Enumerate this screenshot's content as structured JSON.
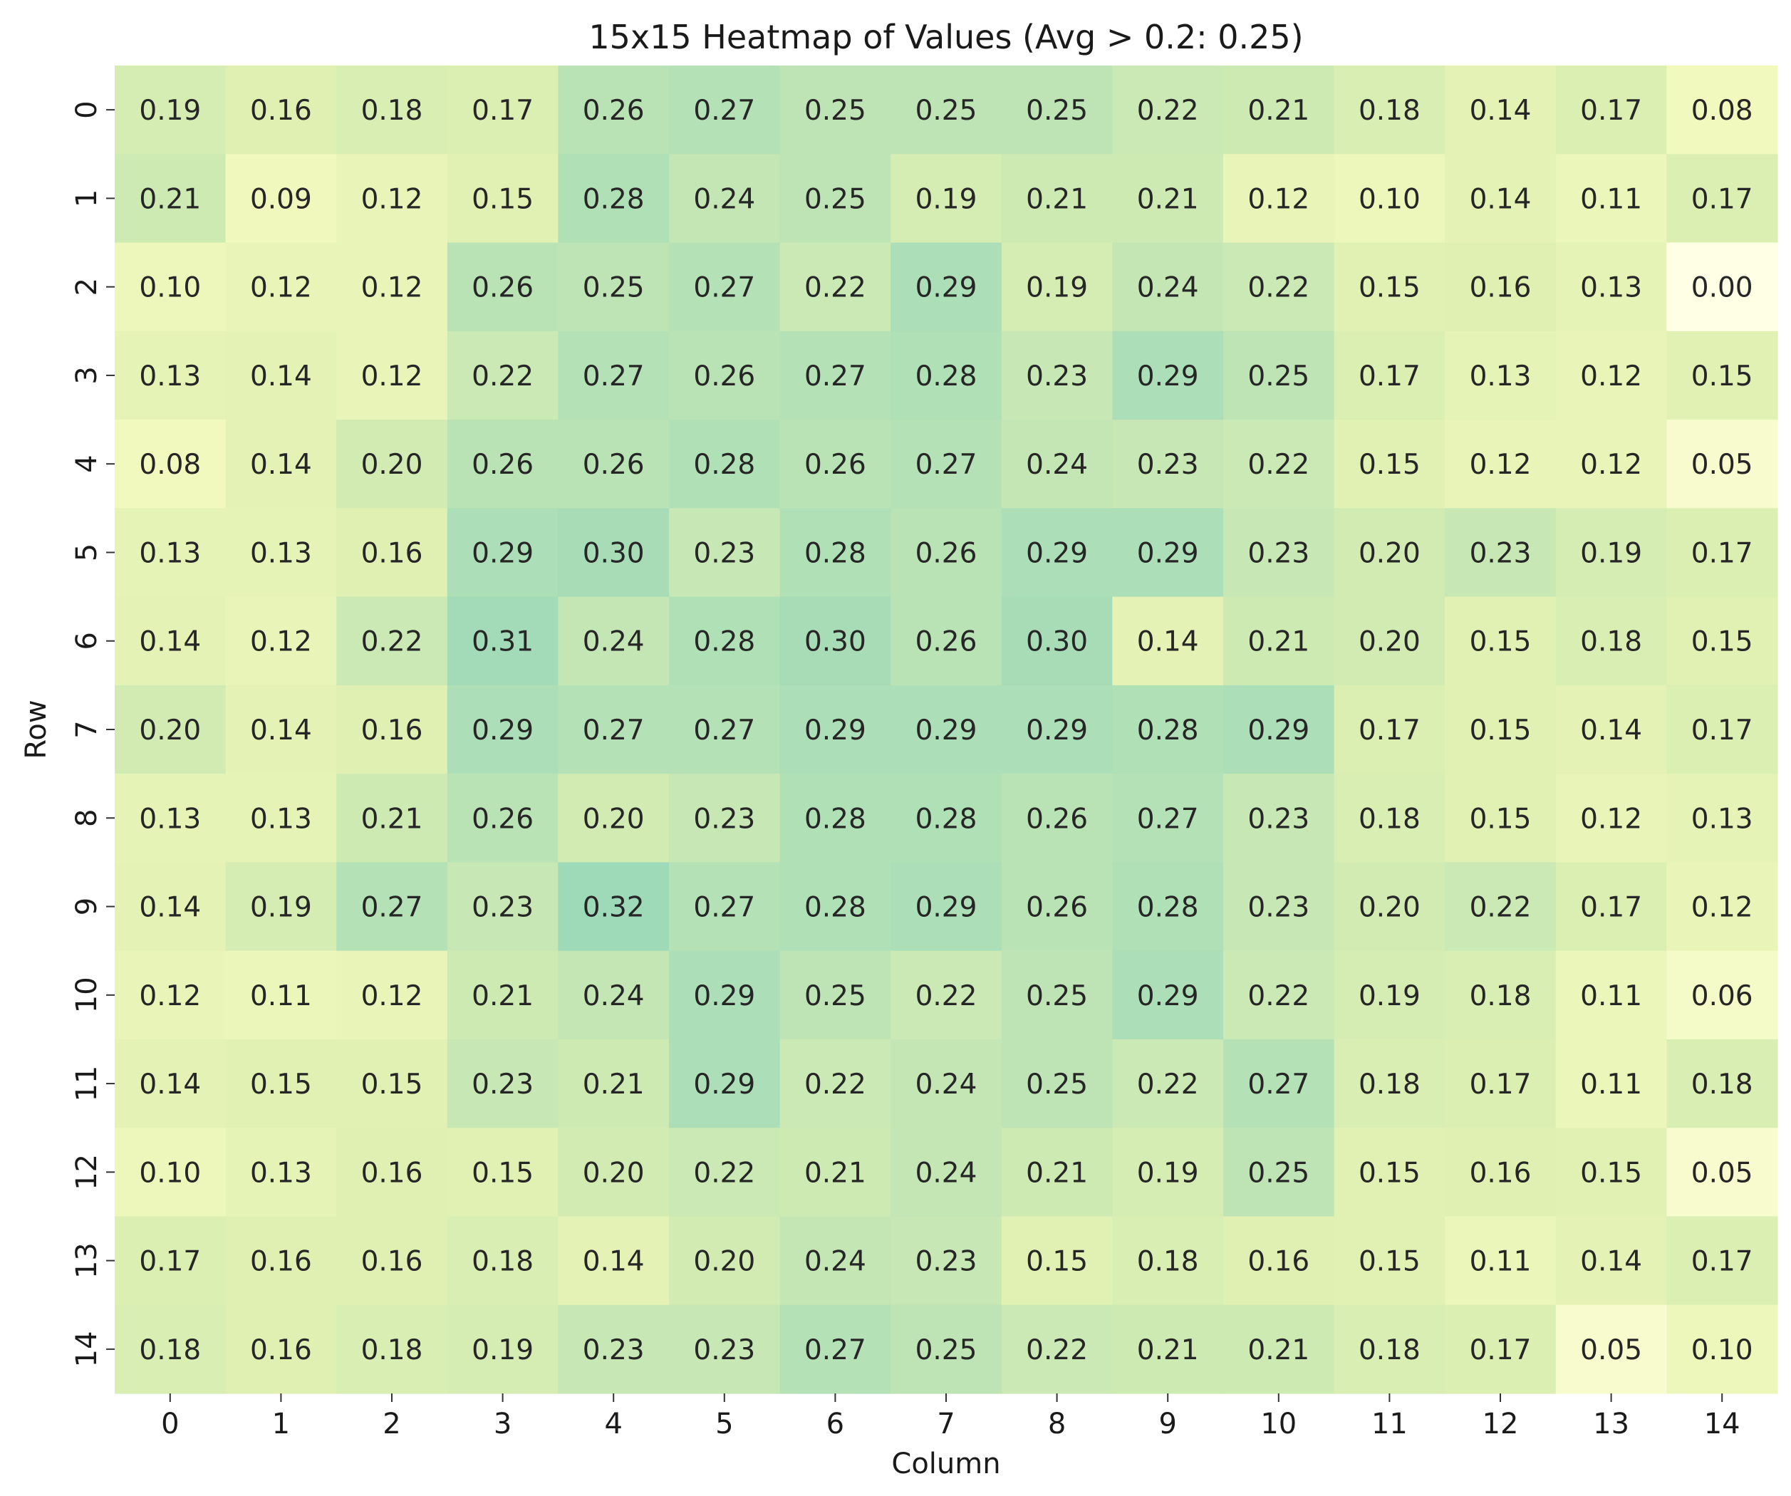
{
  "chart_data": {
    "type": "heatmap",
    "title": "15x15 Heatmap of Values (Avg > 0.2: 0.25)",
    "xlabel": "Column",
    "ylabel": "Row",
    "x_categories": [
      "0",
      "1",
      "2",
      "3",
      "4",
      "5",
      "6",
      "7",
      "8",
      "9",
      "10",
      "11",
      "12",
      "13",
      "14"
    ],
    "y_categories": [
      "0",
      "1",
      "2",
      "3",
      "4",
      "5",
      "6",
      "7",
      "8",
      "9",
      "10",
      "11",
      "12",
      "13",
      "14"
    ],
    "color_range": [
      0.0,
      0.32
    ],
    "colormap": "light yellow to light green",
    "colorbar": false,
    "values": [
      [
        0.19,
        0.16,
        0.18,
        0.17,
        0.26,
        0.27,
        0.25,
        0.25,
        0.25,
        0.22,
        0.21,
        0.18,
        0.14,
        0.17,
        0.08
      ],
      [
        0.21,
        0.09,
        0.12,
        0.15,
        0.28,
        0.24,
        0.25,
        0.19,
        0.21,
        0.21,
        0.12,
        0.1,
        0.14,
        0.11,
        0.17
      ],
      [
        0.1,
        0.12,
        0.12,
        0.26,
        0.25,
        0.27,
        0.22,
        0.29,
        0.19,
        0.24,
        0.22,
        0.15,
        0.16,
        0.13,
        0.0
      ],
      [
        0.13,
        0.14,
        0.12,
        0.22,
        0.27,
        0.26,
        0.27,
        0.28,
        0.23,
        0.29,
        0.25,
        0.17,
        0.13,
        0.12,
        0.15
      ],
      [
        0.08,
        0.14,
        0.2,
        0.26,
        0.26,
        0.28,
        0.26,
        0.27,
        0.24,
        0.23,
        0.22,
        0.15,
        0.12,
        0.12,
        0.05
      ],
      [
        0.13,
        0.13,
        0.16,
        0.29,
        0.3,
        0.23,
        0.28,
        0.26,
        0.29,
        0.29,
        0.23,
        0.2,
        0.23,
        0.19,
        0.17
      ],
      [
        0.14,
        0.12,
        0.22,
        0.31,
        0.24,
        0.28,
        0.3,
        0.26,
        0.3,
        0.14,
        0.21,
        0.2,
        0.15,
        0.18,
        0.15
      ],
      [
        0.2,
        0.14,
        0.16,
        0.29,
        0.27,
        0.27,
        0.29,
        0.29,
        0.29,
        0.28,
        0.29,
        0.17,
        0.15,
        0.14,
        0.17
      ],
      [
        0.13,
        0.13,
        0.21,
        0.26,
        0.2,
        0.23,
        0.28,
        0.28,
        0.26,
        0.27,
        0.23,
        0.18,
        0.15,
        0.12,
        0.13
      ],
      [
        0.14,
        0.19,
        0.27,
        0.23,
        0.32,
        0.27,
        0.28,
        0.29,
        0.26,
        0.28,
        0.23,
        0.2,
        0.22,
        0.17,
        0.12
      ],
      [
        0.12,
        0.11,
        0.12,
        0.21,
        0.24,
        0.29,
        0.25,
        0.22,
        0.25,
        0.29,
        0.22,
        0.19,
        0.18,
        0.11,
        0.06
      ],
      [
        0.14,
        0.15,
        0.15,
        0.23,
        0.21,
        0.29,
        0.22,
        0.24,
        0.25,
        0.22,
        0.27,
        0.18,
        0.17,
        0.11,
        0.18
      ],
      [
        0.1,
        0.13,
        0.16,
        0.15,
        0.2,
        0.22,
        0.21,
        0.24,
        0.21,
        0.19,
        0.25,
        0.15,
        0.16,
        0.15,
        0.05
      ],
      [
        0.17,
        0.16,
        0.16,
        0.18,
        0.14,
        0.2,
        0.24,
        0.23,
        0.15,
        0.18,
        0.16,
        0.15,
        0.11,
        0.14,
        0.17
      ],
      [
        0.18,
        0.16,
        0.18,
        0.19,
        0.23,
        0.23,
        0.27,
        0.25,
        0.22,
        0.21,
        0.21,
        0.18,
        0.17,
        0.05,
        0.1
      ]
    ]
  }
}
